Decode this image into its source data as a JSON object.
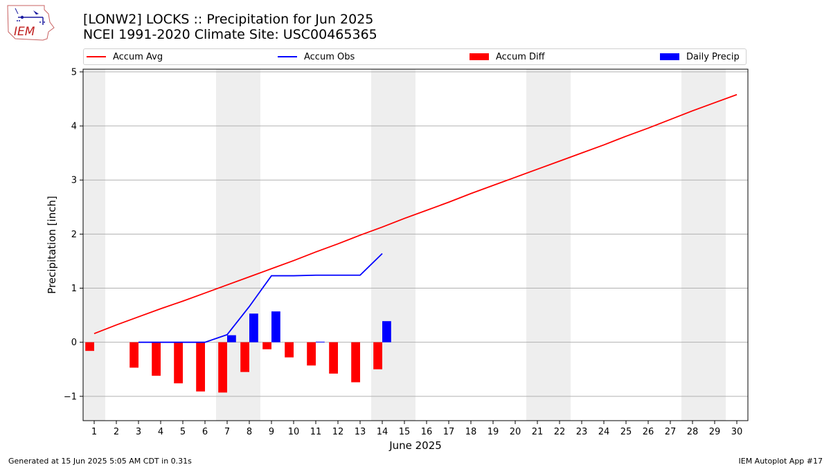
{
  "title_line1": "[LONW2] LOCKS :: Precipitation for Jun 2025",
  "title_line2": "NCEI 1991-2020 Climate Site: USC00465365",
  "logo_text": "IEM",
  "footer_left": "Generated at 15 Jun 2025 5:05 AM CDT in 0.31s",
  "footer_right": "IEM Autoplot App #17",
  "colors": {
    "avg": "#ff0000",
    "obs": "#0000ff",
    "diff": "#ff0000",
    "daily": "#0000ff",
    "weekend": "#eeeeee",
    "grid": "#b0b0b0"
  },
  "chart_data": {
    "type": "bar",
    "xlabel": "June 2025",
    "ylabel": "Precipitation [inch]",
    "xlim": [
      0.5,
      30.5
    ],
    "ylim": [
      -1.45,
      5.05
    ],
    "yticks": [
      -1,
      0,
      1,
      2,
      3,
      4,
      5
    ],
    "ytick_labels": [
      "−1",
      "0",
      "1",
      "2",
      "3",
      "4",
      "5"
    ],
    "days": [
      1,
      2,
      3,
      4,
      5,
      6,
      7,
      8,
      9,
      10,
      11,
      12,
      13,
      14,
      15,
      16,
      17,
      18,
      19,
      20,
      21,
      22,
      23,
      24,
      25,
      26,
      27,
      28,
      29,
      30
    ],
    "weekend_days": [
      1,
      7,
      8,
      14,
      15,
      21,
      22,
      28,
      29
    ],
    "grid": "y",
    "legend_placement": "top",
    "series": [
      {
        "name": "Accum Avg",
        "kind": "line",
        "x": [
          1,
          2,
          3,
          4,
          5,
          6,
          7,
          8,
          9,
          10,
          11,
          12,
          13,
          14,
          15,
          16,
          17,
          18,
          19,
          20,
          21,
          22,
          23,
          24,
          25,
          26,
          27,
          28,
          29,
          30
        ],
        "values": [
          0.16,
          0.32,
          0.47,
          0.62,
          0.76,
          0.91,
          1.06,
          1.21,
          1.36,
          1.51,
          1.67,
          1.82,
          1.98,
          2.13,
          2.29,
          2.44,
          2.59,
          2.75,
          2.9,
          3.05,
          3.2,
          3.35,
          3.5,
          3.65,
          3.81,
          3.96,
          4.12,
          4.28,
          4.43,
          4.58
        ]
      },
      {
        "name": "Accum Obs",
        "kind": "line",
        "x": [
          3,
          4,
          5,
          6,
          7,
          8,
          9,
          10,
          11,
          12,
          13,
          14
        ],
        "values": [
          0.0,
          0.0,
          0.0,
          0.0,
          0.14,
          0.66,
          1.23,
          1.23,
          1.24,
          1.24,
          1.24,
          1.64
        ]
      },
      {
        "name": "Accum Diff",
        "kind": "bar",
        "x": [
          1,
          3,
          4,
          5,
          6,
          7,
          8,
          9,
          10,
          11,
          12,
          13,
          14
        ],
        "values": [
          -0.16,
          -0.47,
          -0.62,
          -0.76,
          -0.91,
          -0.93,
          -0.55,
          -0.13,
          -0.28,
          -0.43,
          -0.58,
          -0.74,
          -0.5
        ]
      },
      {
        "name": "Daily Precip",
        "kind": "bar",
        "x": [
          7,
          8,
          9,
          11,
          14
        ],
        "values": [
          0.13,
          0.53,
          0.57,
          0.01,
          0.39
        ]
      }
    ]
  }
}
